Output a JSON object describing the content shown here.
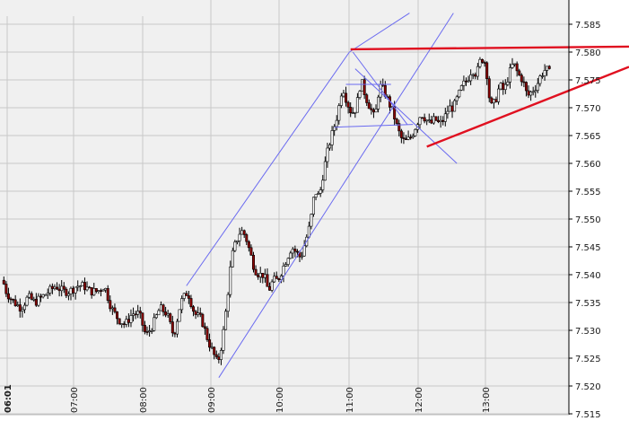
{
  "title_fragment": "",
  "chart_data": {
    "type": "candlestick",
    "ylim": [
      7.515,
      7.587
    ],
    "y_ticks": [
      "7.585",
      "7.580",
      "7.575",
      "7.570",
      "7.565",
      "7.560",
      "7.555",
      "7.550",
      "7.545",
      "7.540",
      "7.535",
      "7.530",
      "7.525",
      "7.520",
      "7.515"
    ],
    "x_ticks": [
      {
        "label": "06:01",
        "bold": true
      },
      {
        "label": "07:00",
        "bold": false
      },
      {
        "label": "08:00",
        "bold": false
      },
      {
        "label": "09:00",
        "bold": false
      },
      {
        "label": "10:00",
        "bold": false
      },
      {
        "label": "11:00",
        "bold": false
      },
      {
        "label": "12:00",
        "bold": false
      },
      {
        "label": "13:00",
        "bold": false
      }
    ],
    "grid": true,
    "colors": {
      "background": "#f0f0f0",
      "grid": "#c8c8c8",
      "up_candle": "#ffffff",
      "down_candle": "#8b0000",
      "wick": "#000000",
      "channel_lines": "#6a6af0",
      "triangle_lines": "#e01020"
    },
    "price_path": [
      {
        "t": 0,
        "p": 7.539
      },
      {
        "t": 3,
        "p": 7.537
      },
      {
        "t": 6,
        "p": 7.536
      },
      {
        "t": 10,
        "p": 7.535
      },
      {
        "t": 16,
        "p": 7.534
      },
      {
        "t": 22,
        "p": 7.536
      },
      {
        "t": 28,
        "p": 7.535
      },
      {
        "t": 34,
        "p": 7.536
      },
      {
        "t": 40,
        "p": 7.537
      },
      {
        "t": 46,
        "p": 7.538
      },
      {
        "t": 52,
        "p": 7.537
      },
      {
        "t": 58,
        "p": 7.537
      },
      {
        "t": 64,
        "p": 7.538
      },
      {
        "t": 70,
        "p": 7.538
      },
      {
        "t": 76,
        "p": 7.537
      },
      {
        "t": 82,
        "p": 7.537
      },
      {
        "t": 88,
        "p": 7.538
      },
      {
        "t": 94,
        "p": 7.534
      },
      {
        "t": 100,
        "p": 7.532
      },
      {
        "t": 106,
        "p": 7.531
      },
      {
        "t": 112,
        "p": 7.533
      },
      {
        "t": 118,
        "p": 7.533
      },
      {
        "t": 124,
        "p": 7.529
      },
      {
        "t": 130,
        "p": 7.531
      },
      {
        "t": 136,
        "p": 7.534
      },
      {
        "t": 142,
        "p": 7.533
      },
      {
        "t": 148,
        "p": 7.529
      },
      {
        "t": 154,
        "p": 7.535
      },
      {
        "t": 160,
        "p": 7.537
      },
      {
        "t": 166,
        "p": 7.533
      },
      {
        "t": 172,
        "p": 7.532
      },
      {
        "t": 178,
        "p": 7.528
      },
      {
        "t": 182,
        "p": 7.526
      },
      {
        "t": 186,
        "p": 7.524
      },
      {
        "t": 190,
        "p": 7.528
      },
      {
        "t": 194,
        "p": 7.535
      },
      {
        "t": 198,
        "p": 7.543
      },
      {
        "t": 202,
        "p": 7.546
      },
      {
        "t": 206,
        "p": 7.548
      },
      {
        "t": 210,
        "p": 7.547
      },
      {
        "t": 214,
        "p": 7.544
      },
      {
        "t": 218,
        "p": 7.541
      },
      {
        "t": 222,
        "p": 7.54
      },
      {
        "t": 226,
        "p": 7.54
      },
      {
        "t": 230,
        "p": 7.537
      },
      {
        "t": 234,
        "p": 7.539
      },
      {
        "t": 238,
        "p": 7.539
      },
      {
        "t": 242,
        "p": 7.541
      },
      {
        "t": 246,
        "p": 7.543
      },
      {
        "t": 250,
        "p": 7.545
      },
      {
        "t": 254,
        "p": 7.544
      },
      {
        "t": 258,
        "p": 7.543
      },
      {
        "t": 262,
        "p": 7.546
      },
      {
        "t": 266,
        "p": 7.549
      },
      {
        "t": 270,
        "p": 7.555
      },
      {
        "t": 274,
        "p": 7.554
      },
      {
        "t": 278,
        "p": 7.559
      },
      {
        "t": 282,
        "p": 7.563
      },
      {
        "t": 286,
        "p": 7.566
      },
      {
        "t": 290,
        "p": 7.569
      },
      {
        "t": 294,
        "p": 7.574
      },
      {
        "t": 298,
        "p": 7.571
      },
      {
        "t": 302,
        "p": 7.569
      },
      {
        "t": 306,
        "p": 7.57
      },
      {
        "t": 310,
        "p": 7.575
      },
      {
        "t": 314,
        "p": 7.572
      },
      {
        "t": 318,
        "p": 7.57
      },
      {
        "t": 322,
        "p": 7.568
      },
      {
        "t": 326,
        "p": 7.574
      },
      {
        "t": 330,
        "p": 7.573
      },
      {
        "t": 334,
        "p": 7.571
      },
      {
        "t": 338,
        "p": 7.569
      },
      {
        "t": 342,
        "p": 7.566
      },
      {
        "t": 346,
        "p": 7.564
      },
      {
        "t": 350,
        "p": 7.564
      },
      {
        "t": 354,
        "p": 7.565
      },
      {
        "t": 358,
        "p": 7.567
      },
      {
        "t": 362,
        "p": 7.569
      },
      {
        "t": 366,
        "p": 7.568
      },
      {
        "t": 370,
        "p": 7.567
      },
      {
        "t": 374,
        "p": 7.568
      },
      {
        "t": 378,
        "p": 7.567
      },
      {
        "t": 382,
        "p": 7.568
      },
      {
        "t": 386,
        "p": 7.57
      },
      {
        "t": 390,
        "p": 7.57
      },
      {
        "t": 394,
        "p": 7.572
      },
      {
        "t": 398,
        "p": 7.574
      },
      {
        "t": 402,
        "p": 7.575
      },
      {
        "t": 406,
        "p": 7.577
      },
      {
        "t": 410,
        "p": 7.576
      },
      {
        "t": 414,
        "p": 7.579
      },
      {
        "t": 418,
        "p": 7.578
      },
      {
        "t": 422,
        "p": 7.57
      },
      {
        "t": 426,
        "p": 7.571
      },
      {
        "t": 430,
        "p": 7.574
      },
      {
        "t": 434,
        "p": 7.573
      },
      {
        "t": 438,
        "p": 7.576
      },
      {
        "t": 442,
        "p": 7.578
      },
      {
        "t": 446,
        "p": 7.576
      },
      {
        "t": 450,
        "p": 7.575
      },
      {
        "t": 454,
        "p": 7.572
      },
      {
        "t": 458,
        "p": 7.573
      },
      {
        "t": 462,
        "p": 7.574
      },
      {
        "t": 466,
        "p": 7.576
      },
      {
        "t": 470,
        "p": 7.577
      },
      {
        "t": 474,
        "p": 7.576
      }
    ],
    "trend_lines": [
      {
        "name": "channel-lower",
        "color": "channel_lines",
        "t1": 187,
        "p1": 7.5215,
        "t2": 390,
        "p2": 7.587
      },
      {
        "name": "channel-upper",
        "color": "channel_lines",
        "t1": 159,
        "p1": 7.538,
        "t2": 300,
        "p2": 7.58
      },
      {
        "name": "channel-upper-ext",
        "color": "channel_lines",
        "t1": 300,
        "p1": 7.58,
        "t2": 352,
        "p2": 7.587
      },
      {
        "name": "descend-upper",
        "color": "channel_lines",
        "t1": 303,
        "p1": 7.58,
        "t2": 350,
        "p2": 7.567
      },
      {
        "name": "descend-lower",
        "color": "channel_lines",
        "t1": 305,
        "p1": 7.577,
        "t2": 393,
        "p2": 7.56
      },
      {
        "name": "flag-top",
        "color": "channel_lines",
        "t1": 297,
        "p1": 7.5742,
        "t2": 336,
        "p2": 7.5742
      },
      {
        "name": "flag-bottom",
        "color": "channel_lines",
        "t1": 287,
        "p1": 7.5665,
        "t2": 355,
        "p2": 7.567
      },
      {
        "name": "resistance",
        "color": "triangle_lines",
        "t1": 301,
        "p1": 7.5805,
        "t2": 550,
        "p2": 7.581
      },
      {
        "name": "rising-support",
        "color": "triangle_lines",
        "t1": 367,
        "p1": 7.563,
        "t2": 550,
        "p2": 7.578
      }
    ]
  }
}
